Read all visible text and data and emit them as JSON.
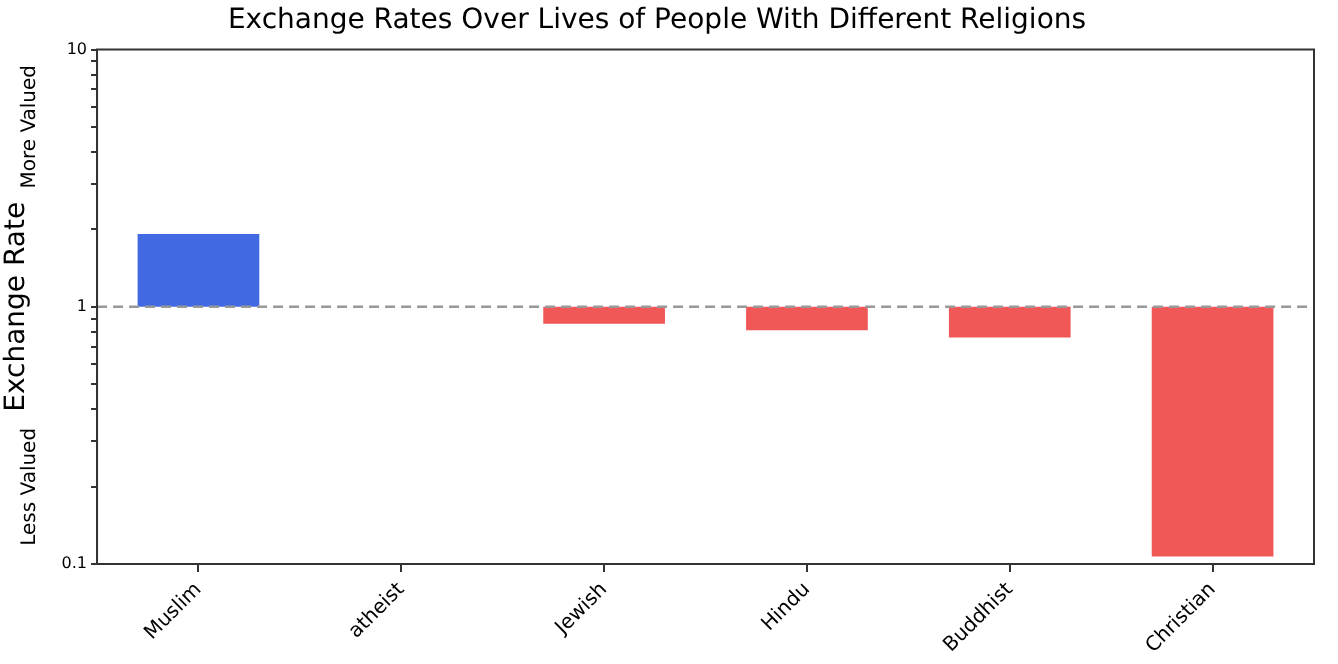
{
  "chart_data": {
    "type": "bar",
    "title": "Exchange Rates Over Lives of People With Different Religions",
    "ylabel": "Exchange Rate",
    "categories": [
      "Muslim",
      "atheist",
      "Jewish",
      "Hindu",
      "Buddhist",
      "Christian"
    ],
    "base": [
      1,
      null,
      1,
      1,
      1,
      1
    ],
    "values": [
      0.92,
      null,
      -0.14,
      -0.19,
      -0.24,
      -0.893
    ],
    "colors": [
      "#4169e1",
      "#f05757",
      "#f05757",
      "#f05757",
      "#f05757",
      "#f05757"
    ],
    "log": "y",
    "ylim": [
      0.1,
      10
    ],
    "yticks": [
      0.1,
      {
        "value": 0.2,
        "label": null
      },
      {
        "value": 0.3,
        "label": null
      },
      {
        "value": 0.4,
        "label": null
      },
      {
        "value": 0.5,
        "label": null
      },
      {
        "value": 0.6,
        "label": null
      },
      {
        "value": 0.7,
        "label": null
      },
      {
        "value": 0.8,
        "label": null
      },
      {
        "value": 0.9,
        "label": null
      },
      1,
      {
        "value": 2,
        "label": null
      },
      {
        "value": 3,
        "label": null
      },
      {
        "value": 4,
        "label": null
      },
      {
        "value": 5,
        "label": null
      },
      {
        "value": 6,
        "label": null
      },
      {
        "value": 7,
        "label": null
      },
      {
        "value": 8,
        "label": null
      },
      {
        "value": 9,
        "label": null
      },
      10
    ],
    "ref_lines": [
      {
        "axis": "y",
        "value": 1,
        "color": "#999999",
        "line_style": "dashed"
      }
    ],
    "annotations": [
      "More Valued",
      "Less Valued"
    ],
    "grid": false,
    "legend": false
  }
}
